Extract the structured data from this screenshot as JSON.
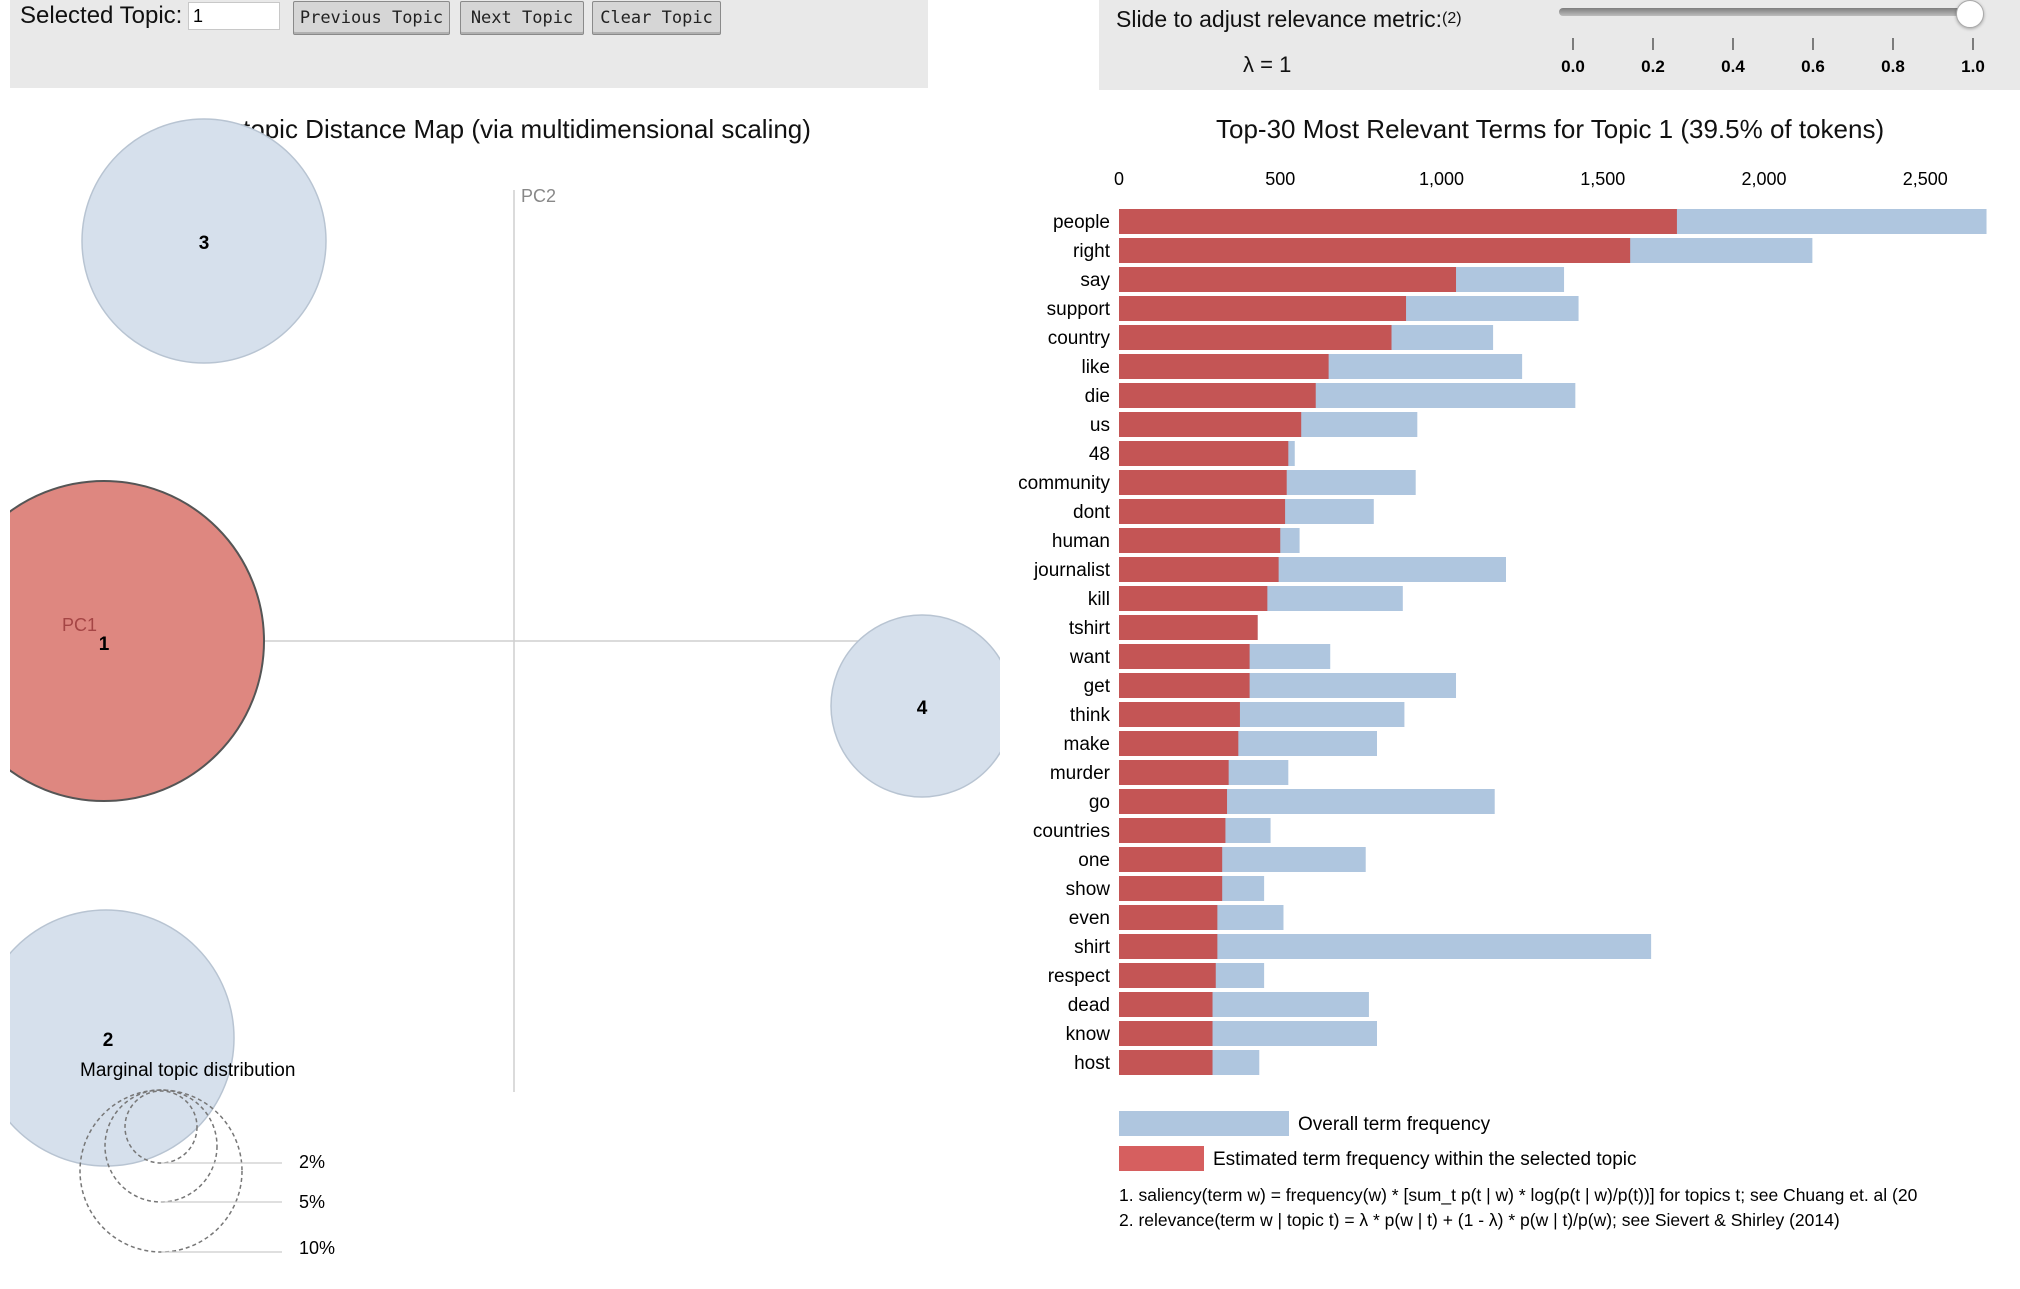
{
  "topic_panel": {
    "selected_label": "Selected Topic:",
    "selected_value": "1",
    "prev_label": "Previous Topic",
    "next_label": "Next Topic",
    "clear_label": "Clear Topic"
  },
  "slider_panel": {
    "label": "Slide to adjust relevance metric:",
    "footnote_ref": "(2)",
    "lambda_text": "λ = 1",
    "lambda_value": 1.0,
    "ticks": [
      "0.0",
      "0.2",
      "0.4",
      "0.6",
      "0.8",
      "1.0"
    ]
  },
  "map": {
    "title": "Intertopic Distance Map (via multidimensional scaling)",
    "pc1_label": "PC1",
    "pc2_label": "PC2",
    "topics": [
      {
        "id": "1",
        "selected": true
      },
      {
        "id": "2",
        "selected": false
      },
      {
        "id": "3",
        "selected": false
      },
      {
        "id": "4",
        "selected": false
      }
    ],
    "legend": {
      "title": "Marginal topic distribution",
      "sizes": [
        "2%",
        "5%",
        "10%"
      ]
    }
  },
  "bars": {
    "title": "Top-30 Most Relevant Terms for Topic 1 (39.5% of tokens)",
    "legend_overall": "Overall term frequency",
    "legend_topic": "Estimated term frequency within the selected topic",
    "footnote_1": "1. saliency(term w) = frequency(w) * [sum_t p(t | w) * log(p(t | w)/p(t))] for topics t; see Chuang et. al (20",
    "footnote_2": "2. relevance(term w | topic t) = λ * p(w | t) + (1 - λ) * p(w | t)/p(w); see Sievert & Shirley (2014)"
  },
  "colors": {
    "selected_red": "#c45555",
    "selected_circle": "#de8780",
    "overall_blue": "#afc6df",
    "circle_blue": "#d6e0ec"
  },
  "chart_data": {
    "type": "bar",
    "orientation": "horizontal",
    "title": "Top-30 Most Relevant Terms for Topic 1 (39.5% of tokens)",
    "xlim": [
      0,
      2700
    ],
    "x_ticks": [
      "0",
      "500",
      "1,000",
      "1,500",
      "2,000",
      "2,500"
    ],
    "x_tick_values": [
      0,
      500,
      1000,
      1500,
      2000,
      2500
    ],
    "categories": [
      "people",
      "right",
      "say",
      "support",
      "country",
      "like",
      "die",
      "us",
      "48",
      "community",
      "dont",
      "human",
      "journalist",
      "kill",
      "tshirt",
      "want",
      "get",
      "think",
      "make",
      "murder",
      "go",
      "countries",
      "one",
      "show",
      "even",
      "shirt",
      "respect",
      "dead",
      "know",
      "host"
    ],
    "series": [
      {
        "name": "Overall term frequency",
        "values": [
          2690,
          2150,
          1380,
          1425,
          1160,
          1250,
          1415,
          925,
          545,
          920,
          790,
          560,
          1200,
          880,
          430,
          655,
          1045,
          885,
          800,
          525,
          1165,
          470,
          765,
          450,
          510,
          1650,
          450,
          775,
          800,
          435
        ]
      },
      {
        "name": "Estimated term frequency within the selected topic",
        "values": [
          1730,
          1585,
          1045,
          890,
          845,
          650,
          610,
          565,
          525,
          520,
          515,
          500,
          495,
          460,
          430,
          405,
          405,
          375,
          370,
          340,
          335,
          330,
          320,
          320,
          305,
          305,
          300,
          290,
          290,
          290
        ]
      }
    ],
    "legend_position": "bottom"
  }
}
